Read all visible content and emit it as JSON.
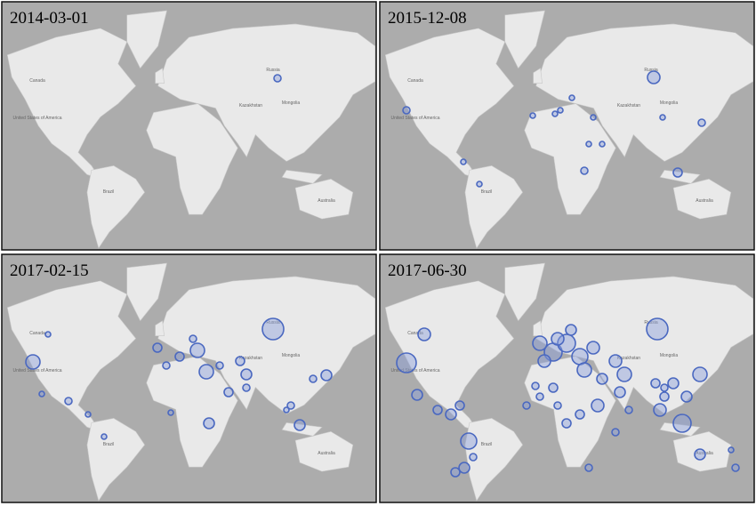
{
  "panels": [
    {
      "date": "2014-03-01"
    },
    {
      "date": "2015-12-08"
    },
    {
      "date": "2017-02-15"
    },
    {
      "date": "2017-06-30"
    }
  ],
  "map_labels": [
    "Canada",
    "United States of America",
    "Brazil",
    "Russia",
    "Kazakhstan",
    "Australia",
    "Mongolia"
  ]
}
